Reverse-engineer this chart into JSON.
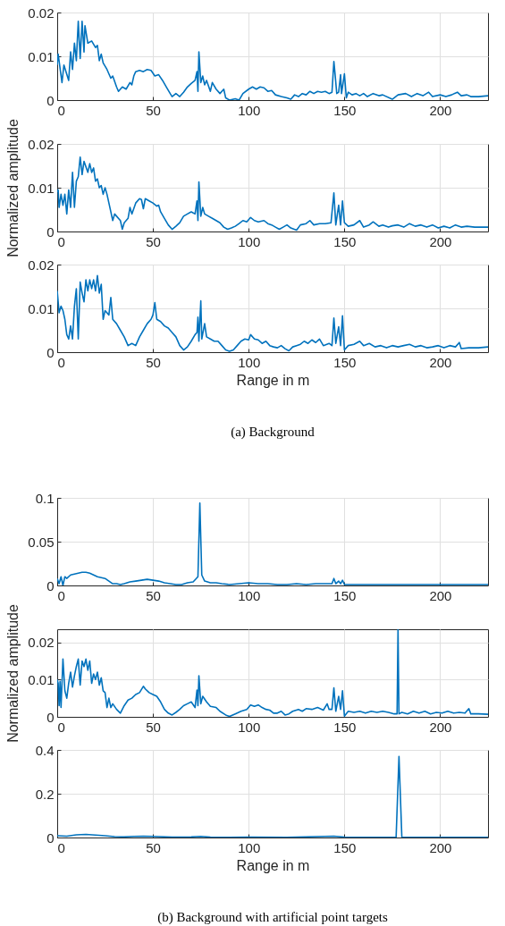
{
  "chart_data": [
    {
      "type": "line",
      "xlim": [
        0,
        225
      ],
      "xticks": [
        0,
        50,
        100,
        150,
        200
      ],
      "ylim": [
        0,
        0.02
      ],
      "yticks": [
        0,
        0.01,
        0.02
      ],
      "grid": true,
      "x": [
        0,
        0.5,
        2.5,
        3.5,
        6,
        7,
        8,
        9,
        10,
        11,
        12,
        13,
        14,
        14.5,
        16,
        18,
        20,
        21,
        22,
        23,
        24,
        26,
        28,
        29,
        31,
        32,
        34,
        36,
        38,
        39,
        40,
        41,
        43,
        45,
        47,
        49,
        51,
        53,
        55,
        57,
        59,
        60,
        62,
        64,
        66,
        68,
        70,
        72,
        73,
        73.5,
        74,
        75,
        76,
        77,
        78,
        80,
        81,
        83,
        85,
        87,
        88,
        90,
        93,
        95,
        97,
        100,
        102,
        104,
        106,
        108,
        110,
        112,
        114,
        117,
        120,
        122,
        124,
        126,
        128,
        130,
        132,
        134,
        136,
        138,
        140,
        142,
        143.5,
        144.5,
        145,
        146,
        147,
        148,
        148.5,
        150,
        151,
        152,
        154,
        156,
        158,
        160,
        162,
        165,
        168,
        170,
        175,
        178,
        182,
        185,
        188,
        191,
        194,
        196,
        200,
        203,
        206,
        209,
        211,
        214,
        216,
        220,
        225
      ],
      "series": [
        {
          "color": "#0072bd",
          "values": [
            0.008,
            0.0105,
            0.004,
            0.008,
            0.0045,
            0.011,
            0.007,
            0.013,
            0.009,
            0.018,
            0.0095,
            0.018,
            0.011,
            0.017,
            0.013,
            0.0135,
            0.012,
            0.0125,
            0.009,
            0.0105,
            0.0085,
            0.007,
            0.005,
            0.0055,
            0.003,
            0.002,
            0.003,
            0.0025,
            0.004,
            0.0035,
            0.0055,
            0.0065,
            0.0068,
            0.0065,
            0.007,
            0.0068,
            0.0055,
            0.0058,
            0.0045,
            0.003,
            0.0015,
            0.0008,
            0.0015,
            0.0008,
            0.0018,
            0.003,
            0.0038,
            0.0045,
            0.0065,
            0.002,
            0.011,
            0.004,
            0.0055,
            0.0035,
            0.0045,
            0.002,
            0.004,
            0.0025,
            0.0015,
            0.0025,
            0.0005,
            0,
            0.0003,
            0,
            0.0015,
            0.0025,
            0.003,
            0.0025,
            0.003,
            0.0028,
            0.002,
            0.0022,
            0.0012,
            0.0008,
            0.0005,
            0.0002,
            0.0012,
            0.0008,
            0.0015,
            0.0012,
            0.002,
            0.0015,
            0.002,
            0.0018,
            0.002,
            0.0015,
            0.0018,
            0.0088,
            0.0065,
            0.0015,
            0.0018,
            0.0058,
            0.0015,
            0.006,
            0.0005,
            0.0018,
            0.0012,
            0.0015,
            0.001,
            0.0015,
            0.0008,
            0.0015,
            0.001,
            0.0012,
            0.0002,
            0.0012,
            0.0015,
            0.0008,
            0.0015,
            0.001,
            0.0018,
            0.0008,
            0.0012,
            0.0008,
            0.0012,
            0.0018,
            0.001,
            0.0012,
            0.0008,
            0.0008,
            0.001
          ]
        }
      ]
    },
    {
      "type": "line",
      "xlim": [
        0,
        225
      ],
      "xticks": [
        0,
        50,
        100,
        150,
        200
      ],
      "ylim": [
        0,
        0.02
      ],
      "yticks": [
        0,
        0.01,
        0.02
      ],
      "grid": true,
      "ylabel": "Normalized amplitude",
      "x": [
        0,
        0.5,
        1,
        2,
        3,
        4,
        5,
        6,
        7,
        8,
        9,
        10,
        11,
        12,
        13,
        14,
        16,
        17,
        18,
        19,
        20,
        21,
        22,
        23,
        24,
        25,
        26,
        27,
        28,
        29,
        30,
        31,
        33,
        34,
        35,
        37,
        38,
        39,
        41,
        43,
        44,
        45,
        46,
        48,
        50,
        52,
        53,
        54,
        56,
        58,
        60,
        62,
        64,
        66,
        68,
        70,
        72,
        73,
        73.5,
        74,
        75,
        76,
        77,
        79,
        81,
        83,
        85,
        87,
        89,
        91,
        93,
        95,
        97,
        99,
        101,
        103,
        105,
        108,
        110,
        112,
        114,
        116,
        118,
        120,
        122,
        125,
        127,
        130,
        132,
        134,
        137,
        140,
        143,
        144.5,
        145.5,
        147,
        148,
        149,
        150,
        152,
        155,
        158,
        160,
        163,
        165,
        168,
        170,
        173,
        175,
        178,
        181,
        184,
        187,
        190,
        193,
        196,
        199,
        202,
        205,
        208,
        211,
        214,
        218,
        225
      ],
      "series": [
        {
          "color": "#0072bd",
          "values": [
            0.009,
            0.0095,
            0.0055,
            0.0085,
            0.006,
            0.0085,
            0.004,
            0.0095,
            0.0055,
            0.0135,
            0.0055,
            0.0115,
            0.0125,
            0.017,
            0.013,
            0.016,
            0.0135,
            0.0155,
            0.0135,
            0.0145,
            0.0115,
            0.012,
            0.01,
            0.0105,
            0.0085,
            0.01,
            0.0085,
            0.0065,
            0.0045,
            0.0025,
            0.004,
            0.0035,
            0.0025,
            0.0005,
            0.002,
            0.003,
            0.0055,
            0.004,
            0.0065,
            0.0075,
            0.0073,
            0.0052,
            0.0075,
            0.007,
            0.0065,
            0.0058,
            0.006,
            0.0045,
            0.003,
            0.0015,
            0.0005,
            0.0012,
            0.002,
            0.0035,
            0.004,
            0.0045,
            0.004,
            0.007,
            0.0025,
            0.0113,
            0.0035,
            0.0055,
            0.004,
            0.0035,
            0.003,
            0.0025,
            0.002,
            0.001,
            0.0005,
            0.0008,
            0.0012,
            0.0018,
            0.0025,
            0.0022,
            0.0032,
            0.0025,
            0.0022,
            0.0025,
            0.0018,
            0.0015,
            0.001,
            0.0005,
            0.001,
            0.0015,
            0.0008,
            0.0003,
            0.0015,
            0.0018,
            0.0025,
            0.0015,
            0.0018,
            0.0018,
            0.002,
            0.0088,
            0.0015,
            0.006,
            0.0015,
            0.007,
            0.002,
            0.0012,
            0.0015,
            0.0025,
            0.001,
            0.0015,
            0.0022,
            0.0012,
            0.0015,
            0.001,
            0.0013,
            0.0015,
            0.001,
            0.0018,
            0.0012,
            0.0015,
            0.001,
            0.0015,
            0.0008,
            0.0012,
            0.0008,
            0.0015,
            0.001,
            0.0012,
            0.001,
            0.001
          ]
        }
      ]
    },
    {
      "type": "line",
      "xlim": [
        0,
        225
      ],
      "xticks": [
        0,
        50,
        100,
        150,
        200
      ],
      "ylim": [
        0,
        0.02
      ],
      "yticks": [
        0,
        0.01,
        0.02
      ],
      "grid": true,
      "xlabel": "Range in m",
      "annotations": [
        "(a)  Background"
      ],
      "x": [
        0,
        1,
        2,
        3,
        4,
        5,
        6,
        7,
        8,
        9,
        10,
        11,
        12,
        13,
        14,
        15,
        16,
        17,
        18,
        19,
        20,
        21,
        22,
        23,
        24,
        25,
        27,
        28,
        29,
        31,
        33,
        35,
        37,
        39,
        41,
        43,
        45,
        47,
        49,
        50,
        51,
        52,
        54,
        56,
        58,
        60,
        62,
        64,
        66,
        68,
        70,
        72,
        73,
        73.5,
        74,
        75,
        75.5,
        77,
        78,
        80,
        82,
        84,
        86,
        88,
        90,
        92,
        94,
        96,
        98,
        100,
        101,
        103,
        105,
        107,
        109,
        111,
        113,
        115,
        117,
        119,
        121,
        123,
        125,
        127,
        129,
        131,
        133,
        135,
        137,
        139,
        142,
        143.5,
        144.5,
        145.5,
        147,
        148,
        149,
        150,
        152,
        155,
        158,
        160,
        163,
        166,
        169,
        172,
        175,
        178,
        181,
        184,
        187,
        190,
        193,
        196,
        199,
        202,
        205,
        208,
        210,
        211,
        215,
        220,
        225
      ],
      "series": [
        {
          "color": "#0072bd",
          "values": [
            0.014,
            0.009,
            0.0105,
            0.0095,
            0.0075,
            0.004,
            0.003,
            0.006,
            0.003,
            0.0105,
            0.0145,
            0.003,
            0.016,
            0.0135,
            0.0115,
            0.0165,
            0.014,
            0.0165,
            0.0145,
            0.0165,
            0.014,
            0.0175,
            0.0135,
            0.0155,
            0.0075,
            0.0095,
            0.0085,
            0.0125,
            0.0075,
            0.0065,
            0.005,
            0.0035,
            0.0015,
            0.002,
            0.0015,
            0.0035,
            0.005,
            0.0065,
            0.0075,
            0.0085,
            0.0113,
            0.0075,
            0.007,
            0.006,
            0.0055,
            0.0045,
            0.0035,
            0.0015,
            0.0005,
            0.0012,
            0.0025,
            0.004,
            0.0045,
            0.008,
            0.0025,
            0.0117,
            0.003,
            0.0065,
            0.0035,
            0.003,
            0.0025,
            0.0025,
            0.0015,
            0.0005,
            0.0002,
            0.0005,
            0.0015,
            0.0025,
            0.003,
            0.0028,
            0.004,
            0.003,
            0.0028,
            0.002,
            0.0025,
            0.0015,
            0.0012,
            0.001,
            0.0015,
            0.0008,
            0.0003,
            0.0012,
            0.0015,
            0.0018,
            0.0025,
            0.002,
            0.0028,
            0.0022,
            0.003,
            0.0015,
            0.002,
            0.0015,
            0.0078,
            0.002,
            0.0058,
            0.0015,
            0.0083,
            0.0005,
            0.0015,
            0.0018,
            0.0025,
            0.0015,
            0.002,
            0.0012,
            0.0015,
            0.001,
            0.0015,
            0.0012,
            0.0015,
            0.0018,
            0.0012,
            0.0015,
            0.001,
            0.0012,
            0.0015,
            0.001,
            0.0015,
            0.0012,
            0.0022,
            0.0008,
            0.001,
            0.001,
            0.0012
          ]
        }
      ]
    },
    {
      "type": "line",
      "xlim": [
        0,
        225
      ],
      "xticks": [
        0,
        50,
        100,
        150,
        200
      ],
      "ylim": [
        0,
        0.1
      ],
      "yticks": [
        0,
        0.05,
        0.1
      ],
      "grid": true,
      "x": [
        0,
        1,
        2,
        3,
        4,
        5,
        7,
        9,
        11,
        13,
        15,
        17,
        19,
        21,
        23,
        25,
        27,
        29,
        31,
        33,
        35,
        38,
        41,
        44,
        47,
        50,
        53,
        56,
        59,
        62,
        65,
        68,
        71,
        73.5,
        74.5,
        75.5,
        77,
        80,
        83,
        86,
        90,
        95,
        100,
        105,
        110,
        115,
        120,
        125,
        130,
        135,
        140,
        143.5,
        144.5,
        145.5,
        147,
        148,
        149,
        150,
        155,
        160,
        170,
        180,
        190,
        200,
        210,
        225
      ],
      "series": [
        {
          "color": "#0072bd",
          "values": [
            0.008,
            0.002,
            0.01,
            0,
            0.01,
            0.008,
            0.012,
            0.013,
            0.014,
            0.015,
            0.015,
            0.014,
            0.012,
            0.01,
            0.009,
            0.008,
            0.005,
            0.002,
            0.002,
            0.001,
            0.002,
            0.004,
            0.005,
            0.006,
            0.007,
            0.006,
            0.005,
            0.003,
            0.002,
            0.001,
            0.001,
            0.003,
            0.004,
            0.01,
            0.094,
            0.012,
            0.005,
            0.003,
            0.003,
            0.002,
            0.001,
            0.002,
            0.003,
            0.002,
            0.002,
            0.001,
            0.001,
            0.002,
            0.001,
            0.002,
            0.002,
            0.002,
            0.008,
            0.002,
            0.005,
            0.002,
            0.006,
            0.001,
            0.001,
            0.001,
            0.001,
            0.001,
            0.001,
            0.001,
            0.001,
            0.001
          ]
        }
      ]
    },
    {
      "type": "line",
      "xlim": [
        0,
        225
      ],
      "xticks": [
        0,
        50,
        100,
        150,
        200
      ],
      "ylim": [
        0,
        0.0235
      ],
      "yticks": [
        0,
        0.01,
        0.02
      ],
      "grid": true,
      "ylabel": "Normalized amplitude",
      "x": [
        0,
        0.5,
        1,
        1.5,
        2,
        3,
        4,
        5,
        6,
        7,
        8,
        9,
        10,
        11,
        12,
        13,
        14,
        15,
        16,
        17,
        18,
        19,
        20,
        21,
        22,
        23,
        24,
        25,
        26,
        27,
        28,
        29,
        31,
        33,
        35,
        37,
        39,
        41,
        43,
        45,
        46,
        48,
        50,
        52,
        54,
        56,
        58,
        60,
        62,
        64,
        66,
        68,
        70,
        72,
        73,
        73.5,
        74,
        75,
        76,
        78,
        80,
        83,
        85,
        88,
        90,
        93,
        96,
        99,
        101,
        103,
        105,
        107,
        109,
        111,
        113,
        115,
        117,
        119,
        121,
        123,
        126,
        128,
        130,
        133,
        136,
        139,
        141,
        142,
        143.5,
        144.5,
        145.5,
        147,
        148,
        149,
        150,
        152,
        155,
        158,
        161,
        164,
        167,
        170,
        173,
        176,
        177.5,
        178,
        178.5,
        180,
        183,
        186,
        189,
        192,
        195,
        198,
        201,
        204,
        207,
        210,
        213,
        215,
        216,
        220,
        225
      ],
      "series": [
        {
          "color": "#0072bd",
          "values": [
            0.01,
            0.009,
            0.003,
            0.0095,
            0.0025,
            0.0155,
            0.007,
            0.005,
            0.009,
            0.012,
            0.008,
            0.011,
            0.0135,
            0.0155,
            0.0085,
            0.015,
            0.0135,
            0.0155,
            0.0125,
            0.015,
            0.009,
            0.0115,
            0.01,
            0.012,
            0.0085,
            0.0105,
            0.007,
            0.0065,
            0.0025,
            0.005,
            0.0025,
            0.0035,
            0.002,
            0.001,
            0.003,
            0.0045,
            0.005,
            0.006,
            0.0065,
            0.0082,
            0.0075,
            0.0065,
            0.006,
            0.0055,
            0.004,
            0.002,
            0.001,
            0.0005,
            0.0012,
            0.002,
            0.003,
            0.0035,
            0.004,
            0.0025,
            0.0072,
            0.003,
            0.011,
            0.0035,
            0.0055,
            0.004,
            0.0028,
            0.0025,
            0.0015,
            0.0005,
            0.0001,
            0.0008,
            0.0015,
            0.002,
            0.0032,
            0.0028,
            0.0032,
            0.0025,
            0.002,
            0.0018,
            0.001,
            0.001,
            0.0015,
            0.0005,
            0.0008,
            0.0015,
            0.002,
            0.0015,
            0.0022,
            0.002,
            0.0025,
            0.0018,
            0.0035,
            0.002,
            0.002,
            0.0078,
            0.0015,
            0.0055,
            0.002,
            0.007,
            0.0002,
            0.0015,
            0.0012,
            0.0015,
            0.001,
            0.0015,
            0.0012,
            0.0015,
            0.0012,
            0.0008,
            0.0008,
            0.0235,
            0.0008,
            0.0012,
            0.0008,
            0.0015,
            0.001,
            0.0015,
            0.0008,
            0.0012,
            0.001,
            0.0015,
            0.001,
            0.0012,
            0.001,
            0.0022,
            0.0008,
            0.0008,
            0.0007
          ]
        }
      ]
    },
    {
      "type": "line",
      "xlim": [
        0,
        225
      ],
      "xticks": [
        0,
        50,
        100,
        150,
        200
      ],
      "ylim": [
        0,
        0.4
      ],
      "yticks": [
        0,
        0.2,
        0.4
      ],
      "grid": true,
      "xlabel": "Range in m",
      "annotations": [
        "(b)  Background with artificial point targets"
      ],
      "x": [
        0,
        5,
        10,
        15,
        20,
        25,
        30,
        35,
        40,
        45,
        50,
        60,
        70,
        75,
        80,
        90,
        100,
        120,
        144.5,
        150,
        160,
        177,
        178.5,
        180,
        200,
        225
      ],
      "series": [
        {
          "color": "#0072bd",
          "values": [
            0.008,
            0.006,
            0.012,
            0.014,
            0.011,
            0.008,
            0.004,
            0.003,
            0.005,
            0.006,
            0.005,
            0.002,
            0.003,
            0.005,
            0.002,
            0.001,
            0.002,
            0.001,
            0.006,
            0.002,
            0.001,
            0.001,
            0.37,
            0.001,
            0.001,
            0.001
          ]
        }
      ]
    }
  ]
}
